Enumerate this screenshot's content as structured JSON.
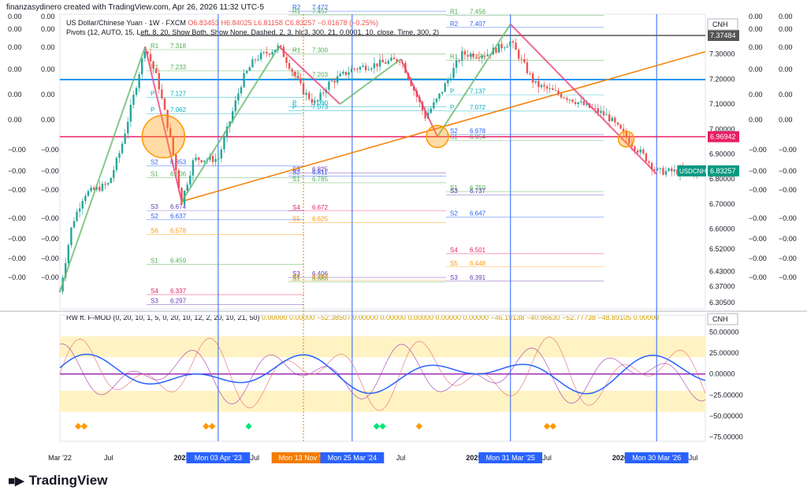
{
  "header": {
    "attribution": "finanzasydinero created with TradingView.com, Apr 26, 2026 11:32 UTC-5"
  },
  "brand": {
    "name": "TradingView"
  },
  "symbol": {
    "title": "US Dollar/Chinese Yuan · 1W · FXCM",
    "ohlc": "O6.83453 H6.84025 L6.81158 C6.83257 −0.01678 (−0.25%)",
    "pivots": "Pivots (12, AUTO, 15, Left, 8, 20, Show Both, Show None, Dashed, 2, 3, hlc3, 300, 21, 0.0001, 10, close, Time, 300, 2)",
    "currency": "CNH",
    "ticker_tag": "USDCNH",
    "last_price": "6.83257",
    "tag_high": "7.37484",
    "tag_mid": "6.96942"
  },
  "indicator": {
    "title": "RW ft. F-MOD (0, 20, 10, 1, 5, 0, 20, 10, 12, 2, 20, 10, 21, 50)",
    "values": [
      "0.00000",
      "0.00000",
      "−52.38507",
      "0.00000",
      "0.00000",
      "0.00000",
      "0.00000",
      "0.00000",
      "−46.10138",
      "−40.96630",
      "−52.77738",
      "−48.89105",
      "0.00000"
    ],
    "currency": "CNH"
  },
  "left_labels": [
    "0.00",
    "0.00",
    "0.00",
    "0.00",
    "0.00",
    "0.00",
    "−0.00",
    "−0.00",
    "−0.00",
    "−0.00",
    "−0.00",
    "−0.00",
    "−0.00"
  ],
  "right_labels": [
    "0.00",
    "0.00",
    "0.00",
    "0.00",
    "0.00",
    "0.00",
    "−0.00",
    "−0.00",
    "−0.00",
    "−0.00",
    "−0.00",
    "−0.00",
    "−0.00"
  ],
  "colors": {
    "up": "#26a69a",
    "down": "#ef5350",
    "accent": "#2962ff",
    "orange": "#f57c00",
    "pink": "#e91e63",
    "yellow_band": "#fff3c4"
  },
  "chart_data": [
    {
      "type": "candlestick",
      "title": "US Dollar/Chinese Yuan · 1W · FXCM",
      "x_ticks": [
        "Mar '22",
        "Jul",
        "2023",
        "Mon 03 Apr '23",
        "Jul",
        "Mon 13 Nov '23",
        "Mon 25 Mar '24",
        "Jul",
        "2025",
        "Mon 31 Mar '25",
        "Jul",
        "2026",
        "Mon 30 Mar '26",
        "Jul"
      ],
      "y_ticks": [
        "7.40000",
        "7.30000",
        "7.20000",
        "7.10000",
        "7.00000",
        "6.90000",
        "6.80000",
        "6.70000",
        "6.60000",
        "6.52000",
        "6.43000",
        "6.37000",
        "6.30500"
      ],
      "ylim": [
        6.28,
        7.46
      ],
      "close_path": [
        {
          "x": "Mar '22",
          "y": 6.35
        },
        {
          "x": "Apr '22",
          "y": 6.62
        },
        {
          "x": "May '22",
          "y": 6.74
        },
        {
          "x": "Jul '22",
          "y": 6.78
        },
        {
          "x": "Aug '22",
          "y": 6.92
        },
        {
          "x": "Sep '22",
          "y": 7.12
        },
        {
          "x": "Oct '22",
          "y": 7.33
        },
        {
          "x": "Nov '22",
          "y": 7.2
        },
        {
          "x": "Dec '22",
          "y": 6.98
        },
        {
          "x": "Jan '23",
          "y": 6.71
        },
        {
          "x": "Feb '23",
          "y": 6.88
        },
        {
          "x": "Apr '23",
          "y": 6.88
        },
        {
          "x": "Jun '23",
          "y": 7.2
        },
        {
          "x": "Jul '23",
          "y": 7.28
        },
        {
          "x": "Sep '23",
          "y": 7.33
        },
        {
          "x": "Nov '23",
          "y": 7.15
        },
        {
          "x": "Dec '23",
          "y": 7.1
        },
        {
          "x": "Jan '24",
          "y": 7.18
        },
        {
          "x": "Mar '24",
          "y": 7.24
        },
        {
          "x": "Jul '24",
          "y": 7.28
        },
        {
          "x": "Sep '24",
          "y": 7.05
        },
        {
          "x": "Oct '24",
          "y": 7.12
        },
        {
          "x": "Dec '24",
          "y": 7.3
        },
        {
          "x": "Feb '25",
          "y": 7.3
        },
        {
          "x": "Apr '25",
          "y": 7.35
        },
        {
          "x": "Jun '25",
          "y": 7.18
        },
        {
          "x": "Sep '25",
          "y": 7.12
        },
        {
          "x": "Dec '25",
          "y": 7.05
        },
        {
          "x": "Feb '26",
          "y": 6.94
        },
        {
          "x": "Mar '26",
          "y": 6.89
        },
        {
          "x": "Apr '26",
          "y": 6.83
        }
      ],
      "horizontal_levels": [
        {
          "label": "R2",
          "value": 7.543
        },
        {
          "label": "R2",
          "value": 7.472
        },
        {
          "label": "R2",
          "value": 7.407
        },
        {
          "label": "R1",
          "value": 7.537
        },
        {
          "label": "R1",
          "value": 7.457
        },
        {
          "label": "R1",
          "value": 7.456
        },
        {
          "label": "R1",
          "value": 7.318
        },
        {
          "label": "R1",
          "value": 7.3
        },
        {
          "label": "R1",
          "value": 7.276
        },
        {
          "label": "R1",
          "value": 7.233
        },
        {
          "label": "R1",
          "value": 7.203
        },
        {
          "label": "P",
          "value": 7.137
        },
        {
          "label": "P",
          "value": 7.127
        },
        {
          "label": "P",
          "value": 7.09
        },
        {
          "label": "P",
          "value": 7.072
        },
        {
          "label": "P",
          "value": 7.062
        },
        {
          "label": "P",
          "value": 7.073
        },
        {
          "label": "S1",
          "value": 6.954
        },
        {
          "label": "S1",
          "value": 6.806
        },
        {
          "label": "S1",
          "value": 6.785
        },
        {
          "label": "S1",
          "value": 6.75
        },
        {
          "label": "S1",
          "value": 6.459
        },
        {
          "label": "S1",
          "value": 6.388
        },
        {
          "label": "S2",
          "value": 6.978
        },
        {
          "label": "S2",
          "value": 6.853
        },
        {
          "label": "S2",
          "value": 6.811
        },
        {
          "label": "S2",
          "value": 6.647
        },
        {
          "label": "S2",
          "value": 6.637
        },
        {
          "label": "S3",
          "value": 6.825
        },
        {
          "label": "S3",
          "value": 6.737
        },
        {
          "label": "S3",
          "value": 6.674
        },
        {
          "label": "S3",
          "value": 6.406
        },
        {
          "label": "S3",
          "value": 6.391
        },
        {
          "label": "S3",
          "value": 6.297
        },
        {
          "label": "S4",
          "value": 6.672
        },
        {
          "label": "S4",
          "value": 6.501
        },
        {
          "label": "S4",
          "value": 6.337
        },
        {
          "label": "S5",
          "value": 6.625
        },
        {
          "label": "S5",
          "value": 6.448
        },
        {
          "label": "S6",
          "value": 6.578
        },
        {
          "label": "S6",
          "value": 6.394
        }
      ],
      "special_lines": [
        {
          "name": "high",
          "value": 7.37484
        },
        {
          "name": "mid",
          "value": 6.96942
        }
      ]
    },
    {
      "type": "line",
      "title": "RW ft. F-MOD",
      "y_ticks": [
        "50.00000",
        "25.00000",
        "0.00000",
        "−25.00000",
        "−50.00000",
        "−75.00000"
      ],
      "ylim": [
        -80,
        70
      ]
    }
  ]
}
